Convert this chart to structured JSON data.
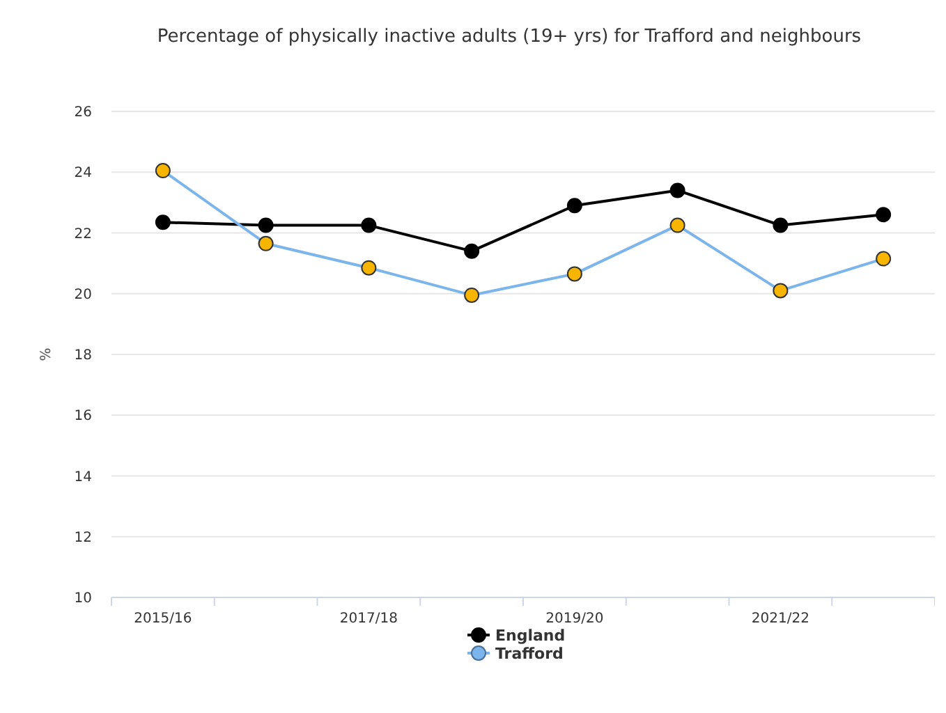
{
  "chart_data": {
    "type": "line",
    "title": "Percentage of physically inactive adults (19+ yrs) for Trafford and neighbours",
    "ylabel": "%",
    "categories": [
      "2015/16",
      null,
      "2017/18",
      null,
      "2019/20",
      null,
      "2021/22",
      null
    ],
    "series": [
      {
        "name": "England",
        "color": "#000000",
        "values": [
          22.35,
          22.25,
          22.25,
          21.4,
          22.9,
          23.4,
          22.25,
          22.6
        ]
      },
      {
        "name": "Trafford",
        "color": "#7cb5ec",
        "colors": [
          "#f7b500",
          "#f7b500",
          "#f7b500",
          "#f7b500",
          "#f7b500",
          "#f7b500",
          "#f7b500",
          "#f7b500"
        ],
        "values": [
          24.05,
          21.65,
          20.85,
          19.95,
          20.65,
          22.25,
          20.1,
          21.15
        ]
      }
    ],
    "ylim": [
      10,
      26
    ],
    "yticks": [
      10,
      12,
      14,
      16,
      18,
      20,
      22,
      24,
      26
    ],
    "grid": "y",
    "legend": "bottom",
    "marker": "circle",
    "line_style": "solid"
  }
}
